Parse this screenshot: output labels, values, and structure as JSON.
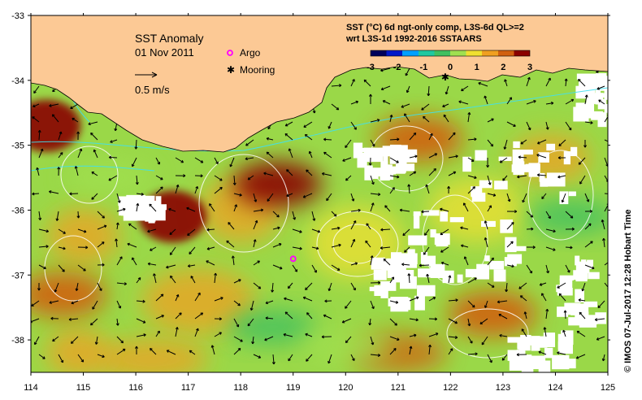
{
  "map": {
    "title": "SST Anomaly",
    "date": "01 Nov 2011",
    "scale_label": "0.5 m/s",
    "legend": {
      "argo_label": "Argo",
      "mooring_label": "Mooring",
      "argo_color": "#ff00ff",
      "mooring_color": "#000000"
    },
    "colorbar": {
      "title_line1": "SST (°C) 6d ngt-only comp, L3S-6d QL>=2",
      "title_line2": "wrt L3S-1d 1992-2016 SSTAARS",
      "tick_labels": [
        "-3",
        "-2",
        "-1",
        "0",
        "1",
        "2",
        "3"
      ],
      "range": [
        -3,
        3
      ],
      "colors": [
        "#00005a",
        "#0018c8",
        "#00a0ff",
        "#20c8a0",
        "#40c060",
        "#a0e050",
        "#f0e030",
        "#f0a020",
        "#d06010",
        "#8a0000"
      ]
    },
    "credit": "© IMOS 07-Jul-2017 12:28 Hobart Time",
    "colors": {
      "land": "#fcc995",
      "no_data": "#ffffff",
      "contour": "#ffffff",
      "current_contour": "#40e0f0"
    }
  },
  "chart_data": {
    "type": "heatmap",
    "title": "SST Anomaly",
    "x_tick_labels": [
      "114",
      "115",
      "116",
      "117",
      "118",
      "119",
      "120",
      "121",
      "122",
      "123",
      "124",
      "125"
    ],
    "y_tick_labels": [
      "-33",
      "-34",
      "-35",
      "-36",
      "-37",
      "-38"
    ],
    "xlim": [
      114,
      125
    ],
    "ylim": [
      -38.5,
      -33
    ],
    "argo_float": {
      "lon": 119.0,
      "lat": -36.75
    },
    "mooring": {
      "lon": 121.9,
      "lat": -33.95
    },
    "hot_spots": [
      {
        "lon": 116.7,
        "lat": -36.1,
        "anomaly": 3
      },
      {
        "lon": 114.3,
        "lat": -34.7,
        "anomaly": 3
      },
      {
        "lon": 118.7,
        "lat": -35.6,
        "anomaly": 2.5
      },
      {
        "lon": 121.4,
        "lat": -34.9,
        "anomaly": 2
      },
      {
        "lon": 122.8,
        "lat": -37.6,
        "anomaly": 2.3
      },
      {
        "lon": 114.6,
        "lat": -37.3,
        "anomaly": 2.3
      }
    ],
    "cool_spots": [
      {
        "lon": 115.5,
        "lat": -35.5,
        "anomaly": 0
      },
      {
        "lon": 118.6,
        "lat": -37.8,
        "anomaly": -0.5
      },
      {
        "lon": 124.3,
        "lat": -36.1,
        "anomaly": -0.3
      },
      {
        "lon": 120.0,
        "lat": -38.1,
        "anomaly": 0
      }
    ]
  }
}
